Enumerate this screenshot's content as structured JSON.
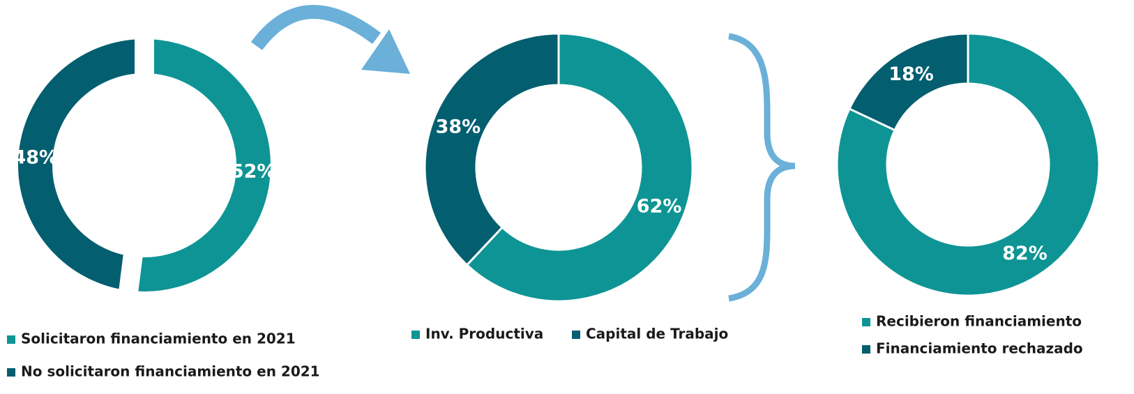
{
  "chart_data": [
    {
      "type": "pie",
      "categories": [
        "Solicitaron financiamiento en 2021",
        "No solicitaron financiamiento en 2021"
      ],
      "values": [
        52,
        48
      ],
      "value_labels": [
        "52%",
        "48%"
      ],
      "colors": [
        "#0e9494",
        "#035e70"
      ]
    },
    {
      "type": "pie",
      "categories": [
        "Inv. Productiva",
        "Capital de Trabajo"
      ],
      "values": [
        62,
        38
      ],
      "value_labels": [
        "62%",
        "38%"
      ],
      "colors": [
        "#0e9494",
        "#035e70"
      ]
    },
    {
      "type": "pie",
      "categories": [
        "Recibieron financiamiento",
        "Financiamiento rechazado"
      ],
      "values": [
        82,
        18
      ],
      "value_labels": [
        "82%",
        "18%"
      ],
      "colors": [
        "#0e9494",
        "#035e70"
      ]
    }
  ]
}
